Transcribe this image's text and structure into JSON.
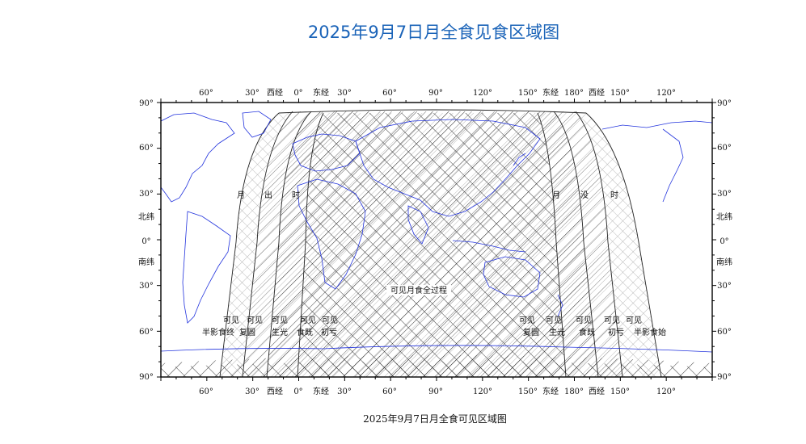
{
  "title": "2025年9月7日月全食见食区域图",
  "caption": "2025年9月7日月全食可见区域图",
  "colors": {
    "title": "#1a63b8",
    "coastline": "#2233dd",
    "hatch_dark": "#222222",
    "hatch_mid": "#777777",
    "hatch_light": "#bbbbbb",
    "frame": "#000000"
  },
  "axes": {
    "top_labels": [
      "60°",
      "30°",
      "西经",
      "0°",
      "东经",
      "30°",
      "60°",
      "90°",
      "120°",
      "150°",
      "东经",
      "180°",
      "西经",
      "150°",
      "120°"
    ],
    "bottom_labels": [
      "60°",
      "30°",
      "西经",
      "0°",
      "东经",
      "30°",
      "60°",
      "90°",
      "120°",
      "150°",
      "东经",
      "180°",
      "西经",
      "150°",
      "120°"
    ],
    "left_labels": [
      "90°",
      "60°",
      "30°",
      "北纬",
      "0°",
      "南纬",
      "30°",
      "60°",
      "90°"
    ],
    "right_labels": [
      "90°",
      "60°",
      "30°",
      "北纬",
      "0°",
      "南纬",
      "30°",
      "60°",
      "90°"
    ]
  },
  "regions": {
    "moonrise_label": "月　出　时",
    "moonset_label": "月　没　时",
    "full_visible": "可见月食全过程",
    "left_phases": [
      {
        "top": "可见",
        "bottom": "半影食终"
      },
      {
        "top": "可见",
        "bottom": "复圆"
      },
      {
        "top": "可见",
        "bottom": "生光"
      },
      {
        "top": "可见",
        "bottom": "食既"
      },
      {
        "top": "可见",
        "bottom": "初亏"
      }
    ],
    "right_phases": [
      {
        "top": "可见",
        "bottom": "复圆"
      },
      {
        "top": "可见",
        "bottom": "生光"
      },
      {
        "top": "可见",
        "bottom": "食既"
      },
      {
        "top": "可见",
        "bottom": "初亏"
      },
      {
        "top": "可见",
        "bottom": "半影食始"
      }
    ]
  }
}
